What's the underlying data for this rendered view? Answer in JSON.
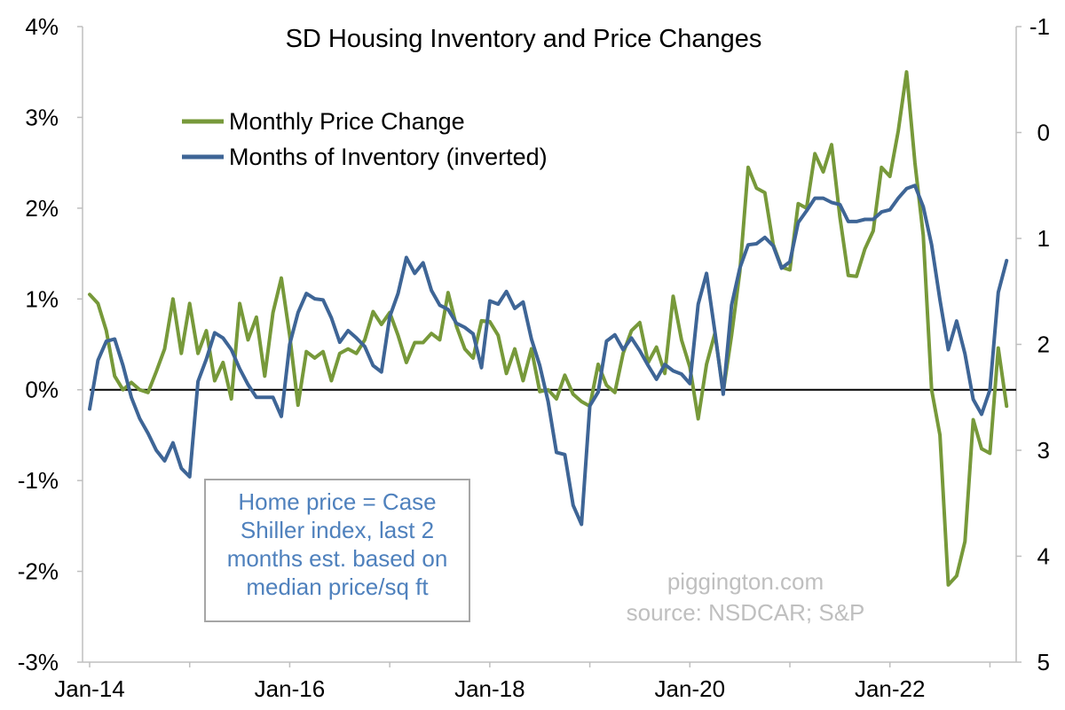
{
  "chart_data": {
    "type": "line",
    "title": "SD Housing Inventory and Price Changes",
    "x_ticks": [
      "Jan-14",
      "Jan-16",
      "Jan-18",
      "Jan-20",
      "Jan-22"
    ],
    "left_axis": {
      "ylim": [
        -3,
        4
      ],
      "ticks": [
        "-3%",
        "-2%",
        "-1%",
        "0%",
        "1%",
        "2%",
        "3%",
        "4%"
      ]
    },
    "right_axis": {
      "inverted": true,
      "ylim": [
        -1,
        5
      ],
      "ticks": [
        "-1",
        "0",
        "1",
        "2",
        "3",
        "4",
        "5"
      ]
    },
    "grid": false,
    "legend_position": "top-left",
    "series": [
      {
        "name": "Monthly Price Change",
        "axis": "left",
        "unit": "%",
        "color": "#77993a",
        "values": [
          1.05,
          0.95,
          0.65,
          0.15,
          0.0,
          0.08,
          0.0,
          -0.03,
          0.2,
          0.45,
          1.0,
          0.4,
          0.95,
          0.4,
          0.65,
          0.1,
          0.3,
          -0.1,
          0.95,
          0.55,
          0.8,
          0.15,
          0.85,
          1.23,
          0.6,
          -0.17,
          0.42,
          0.35,
          0.42,
          0.1,
          0.4,
          0.45,
          0.4,
          0.55,
          0.86,
          0.72,
          0.85,
          0.6,
          0.3,
          0.52,
          0.52,
          0.62,
          0.55,
          1.07,
          0.7,
          0.45,
          0.35,
          0.76,
          0.75,
          0.6,
          0.18,
          0.45,
          0.1,
          0.45,
          -0.02,
          0.0,
          -0.1,
          0.16,
          -0.05,
          -0.13,
          -0.18,
          0.28,
          0.05,
          -0.03,
          0.4,
          0.65,
          0.74,
          0.3,
          0.47,
          0.18,
          1.03,
          0.55,
          0.25,
          -0.32,
          0.28,
          0.62,
          -0.02,
          0.6,
          1.3,
          2.45,
          2.22,
          2.17,
          1.6,
          1.35,
          1.32,
          2.05,
          2.0,
          2.6,
          2.4,
          2.7,
          1.9,
          1.26,
          1.25,
          1.55,
          1.75,
          2.45,
          2.35,
          2.85,
          3.5,
          2.5,
          1.7,
          0.0,
          -0.5,
          -2.15,
          -2.05,
          -1.67,
          -0.33,
          -0.65,
          -0.7,
          0.46,
          -0.18
        ]
      },
      {
        "name": "Months of Inventory (inverted)",
        "axis": "right",
        "unit": "months",
        "color": "#3e6596",
        "values": [
          2.61,
          2.15,
          1.97,
          1.95,
          2.2,
          2.5,
          2.7,
          2.84,
          3.0,
          3.1,
          2.93,
          3.17,
          3.25,
          2.35,
          2.14,
          1.89,
          1.94,
          2.05,
          2.23,
          2.38,
          2.5,
          2.5,
          2.5,
          2.68,
          2.0,
          1.7,
          1.52,
          1.57,
          1.58,
          1.75,
          1.98,
          1.87,
          1.94,
          2.02,
          2.2,
          2.26,
          1.74,
          1.52,
          1.18,
          1.33,
          1.23,
          1.49,
          1.63,
          1.67,
          1.8,
          1.84,
          1.9,
          2.22,
          1.59,
          1.62,
          1.5,
          1.66,
          1.6,
          1.95,
          2.2,
          2.54,
          3.02,
          3.04,
          3.52,
          3.7,
          2.58,
          2.45,
          1.97,
          1.91,
          2.05,
          1.94,
          2.06,
          2.2,
          2.33,
          2.19,
          2.25,
          2.28,
          2.37,
          1.62,
          1.33,
          1.88,
          2.47,
          1.63,
          1.28,
          1.06,
          1.05,
          0.99,
          1.07,
          1.28,
          1.22,
          0.85,
          0.74,
          0.62,
          0.62,
          0.66,
          0.68,
          0.84,
          0.84,
          0.82,
          0.82,
          0.75,
          0.73,
          0.62,
          0.53,
          0.5,
          0.7,
          1.06,
          1.58,
          2.05,
          1.78,
          2.09,
          2.52,
          2.66,
          2.43,
          1.51,
          1.21
        ]
      }
    ],
    "annotation": [
      "Home price = Case",
      "Shiller index, last 2",
      "months est. based on",
      "median price/sq ft"
    ],
    "credits": [
      "piggington.com",
      "source: NSDCAR; S&P"
    ]
  }
}
